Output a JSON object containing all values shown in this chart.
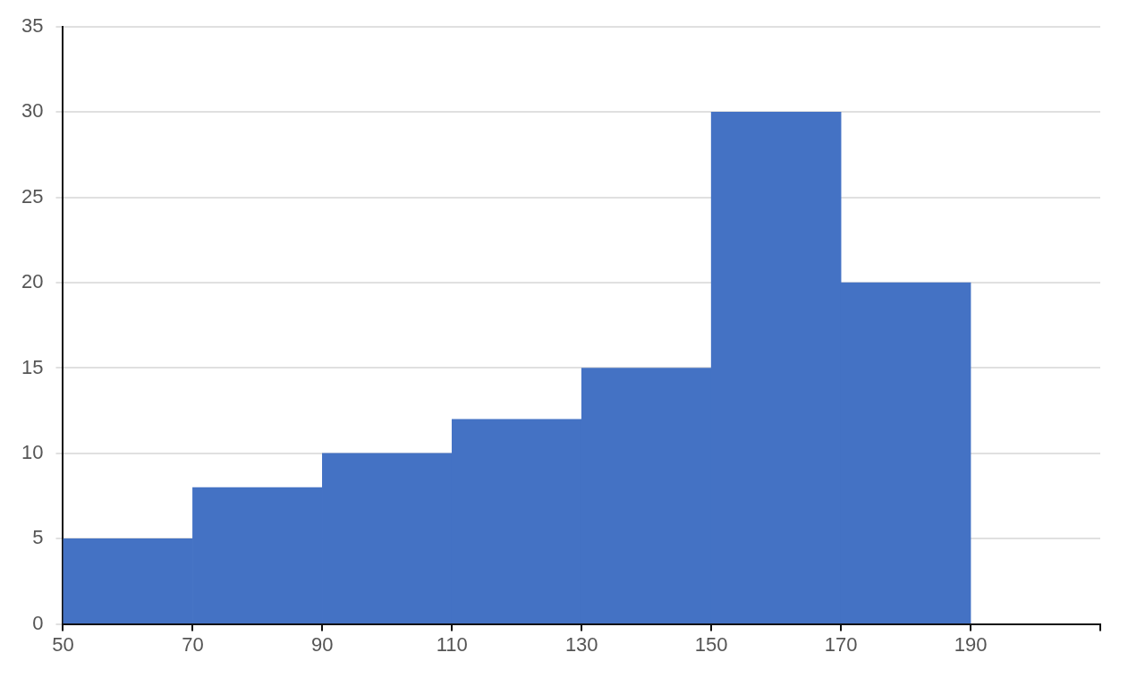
{
  "chart_data": {
    "type": "histogram",
    "bins": [
      50,
      70,
      90,
      110,
      130,
      150,
      170,
      190
    ],
    "values": [
      5,
      8,
      10,
      12,
      15,
      30,
      20
    ],
    "color": "#4472c4",
    "xlim": [
      50,
      210
    ],
    "xticks": [
      50,
      70,
      90,
      110,
      130,
      150,
      170,
      190,
      {
        "value": 210,
        "label": null
      }
    ],
    "ylim": [
      0,
      35
    ],
    "yticks": [
      0,
      5,
      10,
      15,
      20,
      25,
      30,
      35
    ],
    "grid": "y",
    "legend": false
  }
}
